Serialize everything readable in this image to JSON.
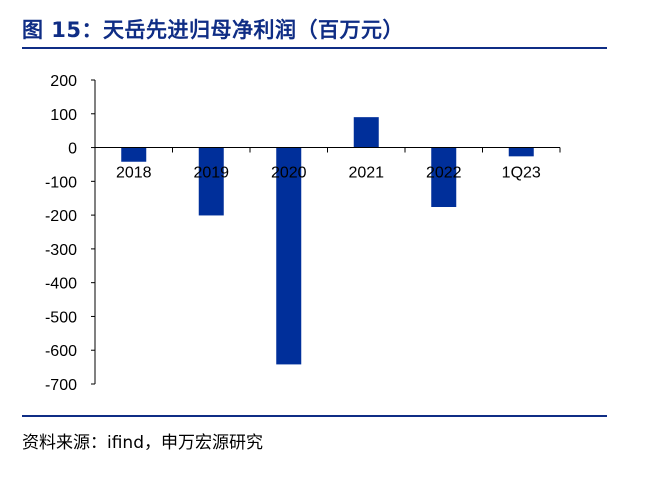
{
  "header": {
    "title": "图 15：天岳先进归母净利润（百万元）"
  },
  "footer": {
    "source": "资料来源：ifind，申万宏源研究"
  },
  "chart_data": {
    "type": "bar",
    "title": "图 15：天岳先进归母净利润（百万元）",
    "xlabel": "",
    "ylabel": "",
    "categories": [
      "2018",
      "2019",
      "2020",
      "2021",
      "2022",
      "1Q23"
    ],
    "values": [
      -42,
      -201,
      -642,
      90,
      -176,
      -26
    ],
    "ylim": [
      -700,
      200
    ],
    "yticks": [
      200,
      100,
      0,
      -100,
      -200,
      -300,
      -400,
      -500,
      -600,
      -700
    ],
    "bar_color": "#002f9a",
    "grid": false,
    "legend": "none"
  }
}
